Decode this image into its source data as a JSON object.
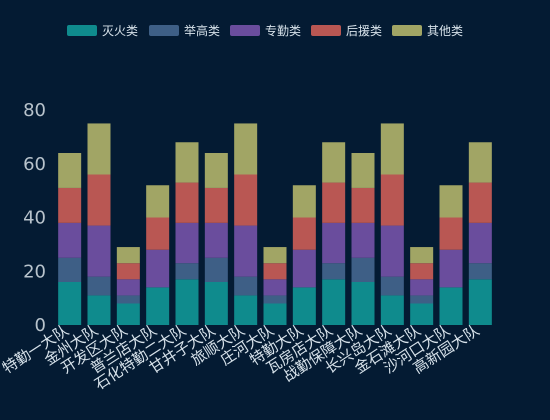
{
  "chart_data": {
    "type": "bar",
    "stacked": true,
    "legend_position": "top-center",
    "grid": false,
    "ylim": [
      0,
      80
    ],
    "y_ticks": [
      0,
      20,
      40,
      60,
      80
    ],
    "categories": [
      "特勤一大队",
      "金州大队",
      "开发区大队",
      "普兰店大队",
      "石化特勤二大队",
      "甘井子大队",
      "旅顺大队",
      "庄河大队",
      "特勤大队",
      "瓦房店大队",
      "战勤保障大队",
      "长兴岛大队",
      "金石滩大队",
      "沙河口大队",
      "高新园大队"
    ],
    "series": [
      {
        "name": "灭火类",
        "color": "#0f8b8d",
        "values": [
          16,
          11,
          8,
          14,
          17,
          16,
          11,
          8,
          14,
          17,
          16,
          11,
          8,
          14,
          17
        ]
      },
      {
        "name": "举高类",
        "color": "#3e5f86",
        "values": [
          9,
          7,
          3,
          0,
          6,
          9,
          7,
          3,
          0,
          6,
          9,
          7,
          3,
          0,
          6
        ]
      },
      {
        "name": "专勤类",
        "color": "#6a4d9d",
        "values": [
          13,
          19,
          6,
          14,
          15,
          13,
          19,
          6,
          14,
          15,
          13,
          19,
          6,
          14,
          15
        ]
      },
      {
        "name": "后援类",
        "color": "#b95753",
        "values": [
          13,
          19,
          6,
          12,
          15,
          13,
          19,
          6,
          12,
          15,
          13,
          19,
          6,
          12,
          15
        ]
      },
      {
        "name": "其他类",
        "color": "#a1a565",
        "values": [
          13,
          19,
          6,
          12,
          15,
          13,
          19,
          6,
          12,
          15,
          13,
          19,
          6,
          12,
          15
        ]
      }
    ]
  }
}
